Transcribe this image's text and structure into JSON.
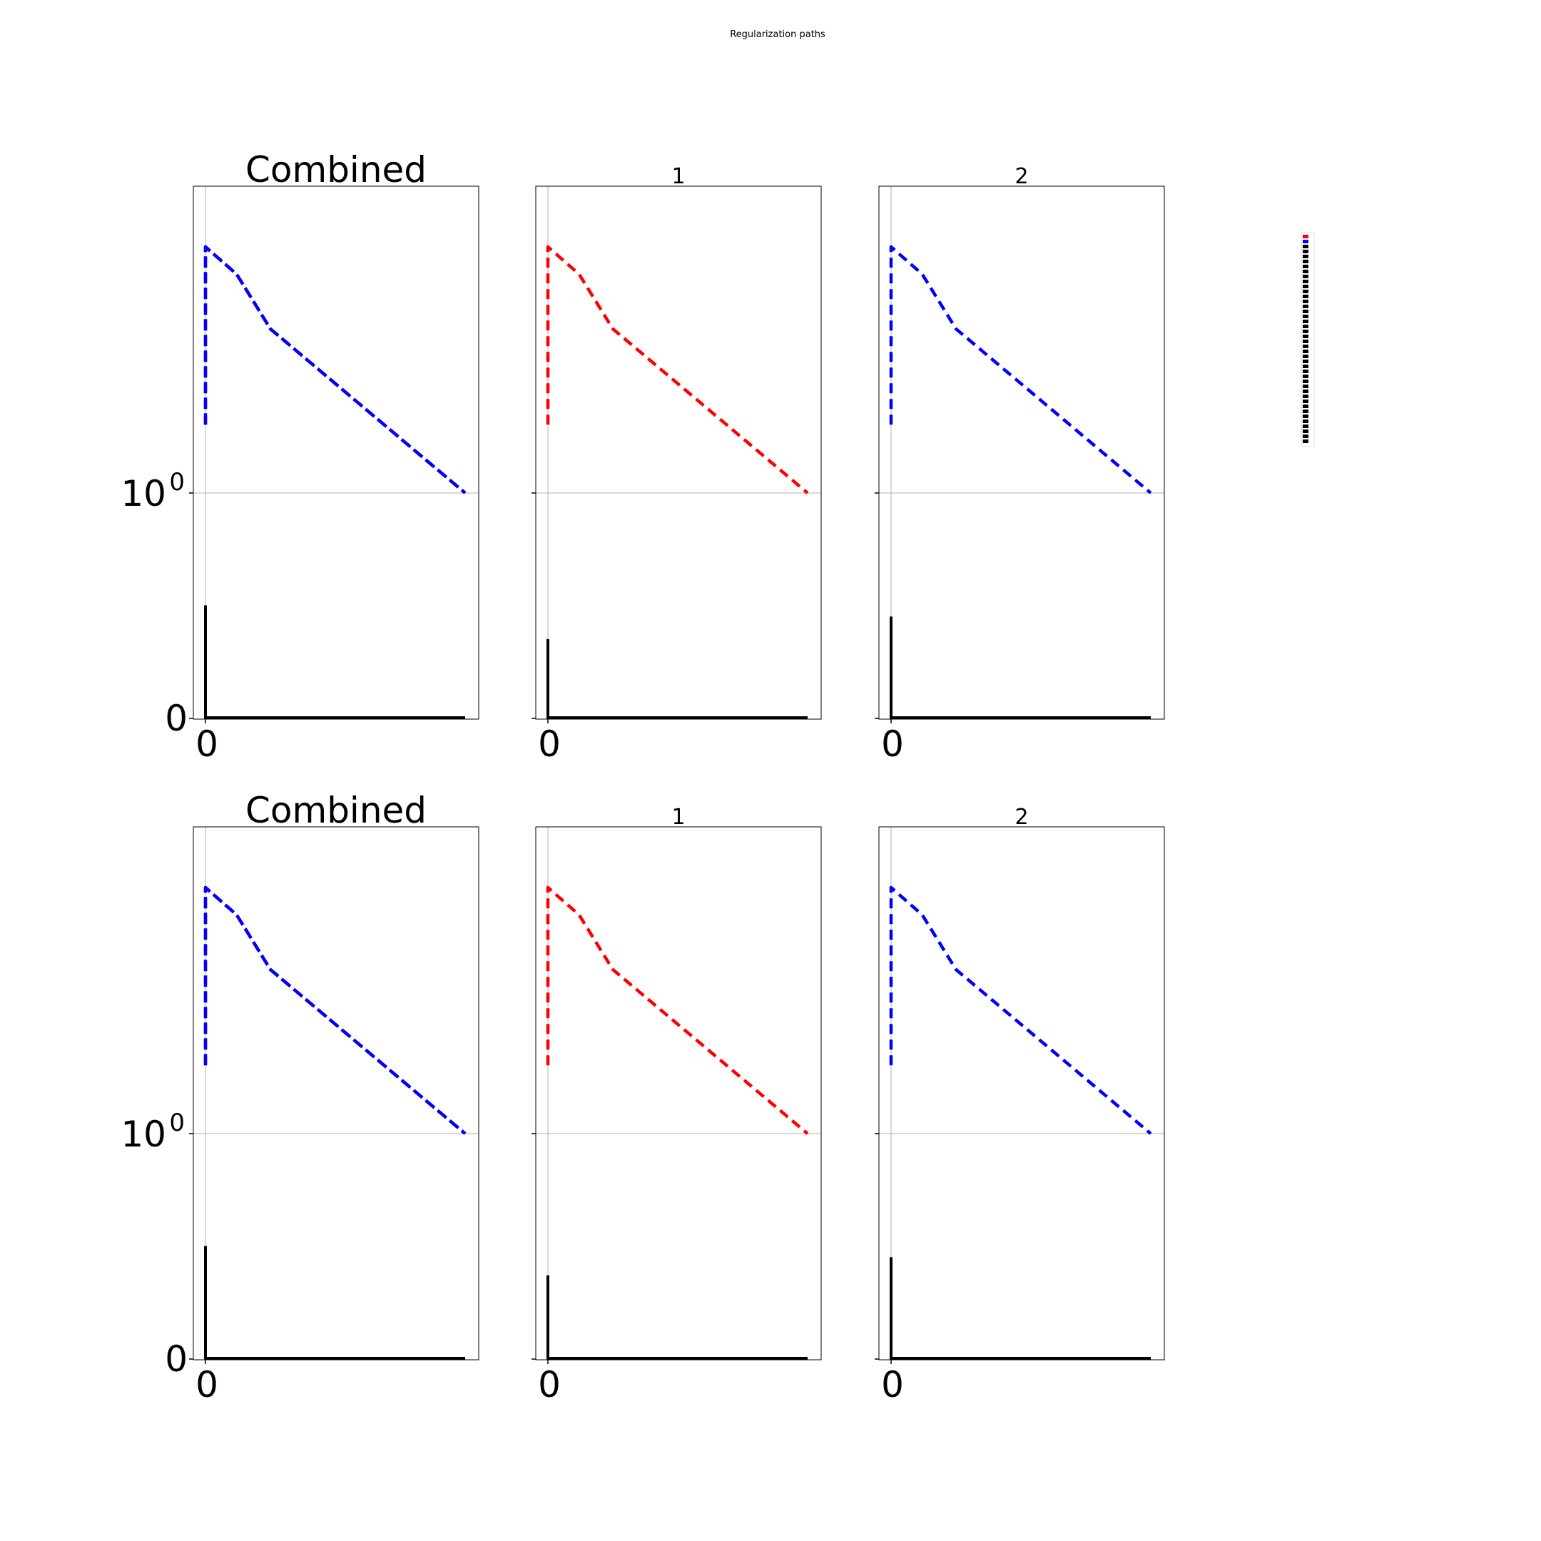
{
  "figure": {
    "suptitle": "Regularization paths"
  },
  "colors": {
    "series1": "#ff0000",
    "series2": "#0000ff",
    "other": "#000000",
    "grid": "#b0b0b0",
    "frame": "#000000"
  },
  "chart_data": [
    {
      "type": "line",
      "title": "Combined",
      "y_scale": "symlog",
      "xlim": [
        0,
        1
      ],
      "x_tick_labels": [
        "0"
      ],
      "y_tick_labels": [
        "0",
        "10^0"
      ],
      "grid": true,
      "series": [
        {
          "color": "red",
          "style": "dashed",
          "x": [
            0.0,
            0.0,
            0.12,
            0.25,
            1.0
          ],
          "y": [
            1.05,
            1.18,
            1.16,
            1.12,
            1.0
          ]
        },
        {
          "color": "blue",
          "style": "dashed",
          "x": [
            0.0,
            0.0,
            0.12,
            0.25,
            1.0
          ],
          "y": [
            1.05,
            1.18,
            1.16,
            1.12,
            1.0
          ]
        },
        {
          "color": "black",
          "style": "solid",
          "x": [
            0.0,
            0.0,
            1.0
          ],
          "y": [
            0.5,
            0.0,
            0.0
          ]
        }
      ]
    },
    {
      "type": "line",
      "title": "1",
      "y_scale": "symlog",
      "xlim": [
        0,
        1
      ],
      "x_tick_labels": [
        "0"
      ],
      "y_tick_labels": [],
      "grid": true,
      "series": [
        {
          "color": "red",
          "style": "dashed",
          "x": [
            0.0,
            0.0,
            0.12,
            0.25,
            1.0
          ],
          "y": [
            1.05,
            1.18,
            1.16,
            1.12,
            1.0
          ]
        },
        {
          "color": "black",
          "style": "solid",
          "x": [
            0.0,
            0.0,
            1.0
          ],
          "y": [
            0.35,
            0.0,
            0.0
          ]
        }
      ]
    },
    {
      "type": "line",
      "title": "2",
      "y_scale": "symlog",
      "xlim": [
        0,
        1
      ],
      "x_tick_labels": [
        "0"
      ],
      "y_tick_labels": [],
      "grid": true,
      "series": [
        {
          "color": "blue",
          "style": "dashed",
          "x": [
            0.0,
            0.0,
            0.12,
            0.25,
            1.0
          ],
          "y": [
            1.05,
            1.18,
            1.16,
            1.12,
            1.0
          ]
        },
        {
          "color": "black",
          "style": "solid",
          "x": [
            0.0,
            0.0,
            1.0
          ],
          "y": [
            0.45,
            0.0,
            0.0
          ]
        }
      ]
    },
    {
      "type": "line",
      "title": "Combined",
      "y_scale": "symlog",
      "xlim": [
        0,
        1
      ],
      "x_tick_labels": [
        "0"
      ],
      "y_tick_labels": [
        "0",
        "10^0"
      ],
      "grid": true,
      "series": [
        {
          "color": "red",
          "style": "dashed",
          "x": [
            0.0,
            0.0,
            0.12,
            0.25,
            1.0
          ],
          "y": [
            1.05,
            1.18,
            1.16,
            1.12,
            1.0
          ]
        },
        {
          "color": "blue",
          "style": "dashed",
          "x": [
            0.0,
            0.0,
            0.12,
            0.25,
            1.0
          ],
          "y": [
            1.05,
            1.18,
            1.16,
            1.12,
            1.0
          ]
        },
        {
          "color": "black",
          "style": "solid",
          "x": [
            0.0,
            0.0,
            1.0
          ],
          "y": [
            0.5,
            0.0,
            0.0
          ]
        }
      ]
    },
    {
      "type": "line",
      "title": "1",
      "y_scale": "symlog",
      "xlim": [
        0,
        1
      ],
      "x_tick_labels": [
        "0"
      ],
      "y_tick_labels": [],
      "grid": true,
      "series": [
        {
          "color": "red",
          "style": "dashed",
          "x": [
            0.0,
            0.0,
            0.12,
            0.25,
            1.0
          ],
          "y": [
            1.05,
            1.18,
            1.16,
            1.12,
            1.0
          ]
        },
        {
          "color": "black",
          "style": "solid",
          "x": [
            0.0,
            0.0,
            1.0
          ],
          "y": [
            0.37,
            0.0,
            0.0
          ]
        }
      ]
    },
    {
      "type": "line",
      "title": "2",
      "y_scale": "symlog",
      "xlim": [
        0,
        1
      ],
      "x_tick_labels": [
        "0"
      ],
      "y_tick_labels": [],
      "grid": true,
      "series": [
        {
          "color": "blue",
          "style": "dashed",
          "x": [
            0.0,
            0.0,
            0.12,
            0.25,
            1.0
          ],
          "y": [
            1.05,
            1.18,
            1.16,
            1.12,
            1.0
          ]
        },
        {
          "color": "black",
          "style": "solid",
          "x": [
            0.0,
            0.0,
            1.0
          ],
          "y": [
            0.45,
            0.0,
            0.0
          ]
        }
      ]
    }
  ]
}
